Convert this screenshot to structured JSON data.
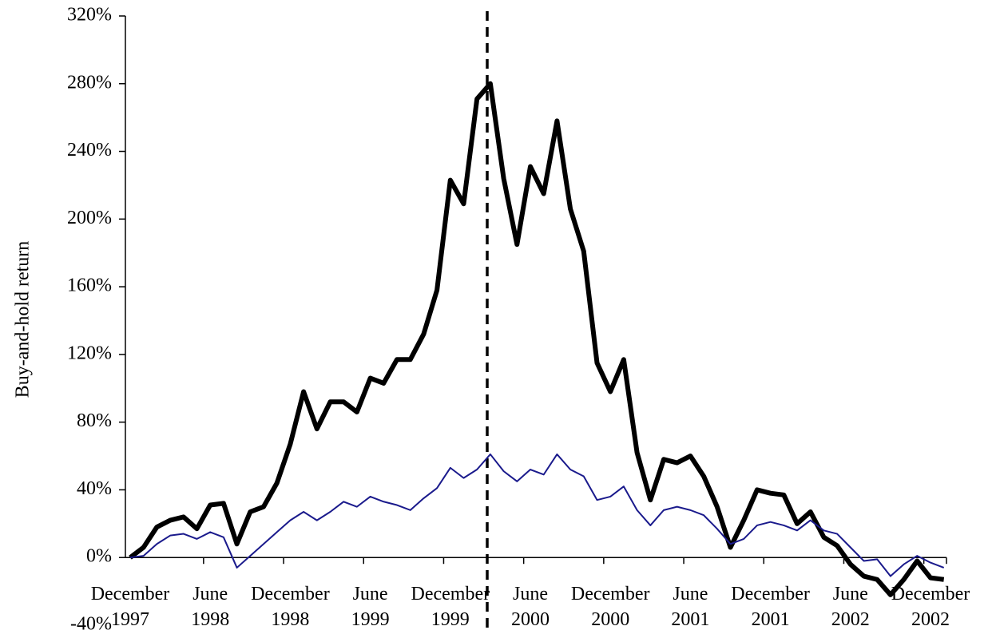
{
  "chart_data": {
    "type": "line",
    "y_label": "Buy-and-hold return",
    "categories": [
      "December\n1997",
      null,
      null,
      null,
      null,
      null,
      "June\n1998",
      null,
      null,
      null,
      null,
      null,
      "December\n1998",
      null,
      null,
      null,
      null,
      null,
      "June\n1999",
      null,
      null,
      null,
      null,
      null,
      "December\n1999",
      null,
      null,
      null,
      null,
      null,
      "June\n2000",
      null,
      null,
      null,
      null,
      null,
      "December\n2000",
      null,
      null,
      null,
      null,
      null,
      "June\n2001",
      null,
      null,
      null,
      null,
      null,
      "December\n2001",
      null,
      null,
      null,
      null,
      null,
      "June\n2002",
      null,
      null,
      null,
      null,
      null,
      "December\n2002",
      null
    ],
    "series": [
      {
        "color": "#000000",
        "values": [
          0,
          6,
          18,
          22,
          24,
          17,
          31,
          32,
          8,
          27,
          30,
          44,
          67,
          98,
          76,
          92,
          92,
          86,
          106,
          103,
          117,
          117,
          132,
          158,
          223,
          209,
          271,
          280,
          224,
          185,
          231,
          215,
          258,
          206,
          181,
          115,
          98,
          117,
          62,
          34,
          58,
          56,
          60,
          48,
          30,
          6,
          22,
          40,
          38,
          37,
          20,
          27,
          12,
          7,
          -4,
          -11,
          -13,
          -22,
          -13,
          -2,
          -12,
          -13
        ]
      },
      {
        "color": "#1a1a8c",
        "values": [
          0,
          1,
          8,
          13,
          14,
          11,
          15,
          12,
          -6,
          1,
          8,
          15,
          22,
          27,
          22,
          27,
          33,
          30,
          36,
          33,
          31,
          28,
          35,
          41,
          53,
          47,
          52,
          61,
          51,
          45,
          52,
          49,
          61,
          52,
          48,
          34,
          36,
          42,
          28,
          19,
          28,
          30,
          28,
          25,
          17,
          8,
          11,
          19,
          21,
          19,
          16,
          22,
          16,
          14,
          6,
          -2,
          -1,
          -11,
          -4,
          1,
          -3,
          -6
        ]
      }
    ],
    "ylim": [
      -40,
      320
    ],
    "yticks": [
      {
        "value": -40,
        "label": "-40%"
      },
      {
        "value": 0,
        "label": "0%"
      },
      {
        "value": 40,
        "label": "40%"
      },
      {
        "value": 80,
        "label": "80%"
      },
      {
        "value": 120,
        "label": "120%"
      },
      {
        "value": 160,
        "label": "160%"
      },
      {
        "value": 200,
        "label": "200%"
      },
      {
        "value": 240,
        "label": "240%"
      },
      {
        "value": 280,
        "label": "280%"
      },
      {
        "value": 320,
        "label": "320%"
      }
    ],
    "grid": false
  }
}
